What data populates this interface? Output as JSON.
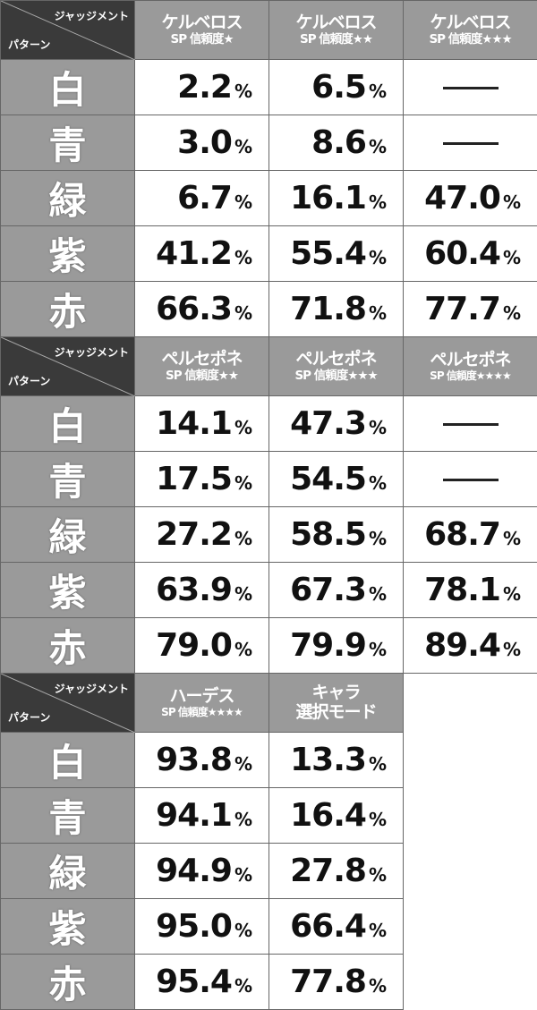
{
  "corner": {
    "judgement": "ジャッジメント",
    "pattern": "パターン"
  },
  "tables": [
    {
      "headers": [
        {
          "l1": "ケルベロス",
          "l2": "SP 信頼度★"
        },
        {
          "l1": "ケルベロス",
          "l2": "SP 信頼度★★"
        },
        {
          "l1": "ケルベロス",
          "l2": "SP 信頼度★★★"
        }
      ],
      "rows": [
        {
          "label": "白",
          "vals": [
            "2.2",
            "6.5",
            "—"
          ]
        },
        {
          "label": "青",
          "vals": [
            "3.0",
            "8.6",
            "—"
          ]
        },
        {
          "label": "緑",
          "vals": [
            "6.7",
            "16.1",
            "47.0"
          ]
        },
        {
          "label": "紫",
          "vals": [
            "41.2",
            "55.4",
            "60.4"
          ]
        },
        {
          "label": "赤",
          "vals": [
            "66.3",
            "71.8",
            "77.7"
          ]
        }
      ]
    },
    {
      "headers": [
        {
          "l1": "ペルセポネ",
          "l2": "SP 信頼度★★"
        },
        {
          "l1": "ペルセポネ",
          "l2": "SP 信頼度★★★"
        },
        {
          "l1": "ペルセポネ",
          "l2": "SP 信頼度★★★★"
        }
      ],
      "rows": [
        {
          "label": "白",
          "vals": [
            "14.1",
            "47.3",
            "—"
          ]
        },
        {
          "label": "青",
          "vals": [
            "17.5",
            "54.5",
            "—"
          ]
        },
        {
          "label": "緑",
          "vals": [
            "27.2",
            "58.5",
            "68.7"
          ]
        },
        {
          "label": "紫",
          "vals": [
            "63.9",
            "67.3",
            "78.1"
          ]
        },
        {
          "label": "赤",
          "vals": [
            "79.0",
            "79.9",
            "89.4"
          ]
        }
      ]
    },
    {
      "headers": [
        {
          "l1": "ハーデス",
          "l2": "SP 信頼度★★★★"
        },
        {
          "l1": "キャラ",
          "l2": "選択モード"
        }
      ],
      "rows": [
        {
          "label": "白",
          "vals": [
            "93.8",
            "13.3"
          ]
        },
        {
          "label": "青",
          "vals": [
            "94.1",
            "16.4"
          ]
        },
        {
          "label": "緑",
          "vals": [
            "94.9",
            "27.8"
          ]
        },
        {
          "label": "紫",
          "vals": [
            "95.0",
            "66.4"
          ]
        },
        {
          "label": "赤",
          "vals": [
            "95.4",
            "77.8"
          ]
        }
      ]
    }
  ],
  "percent_sign": "%"
}
